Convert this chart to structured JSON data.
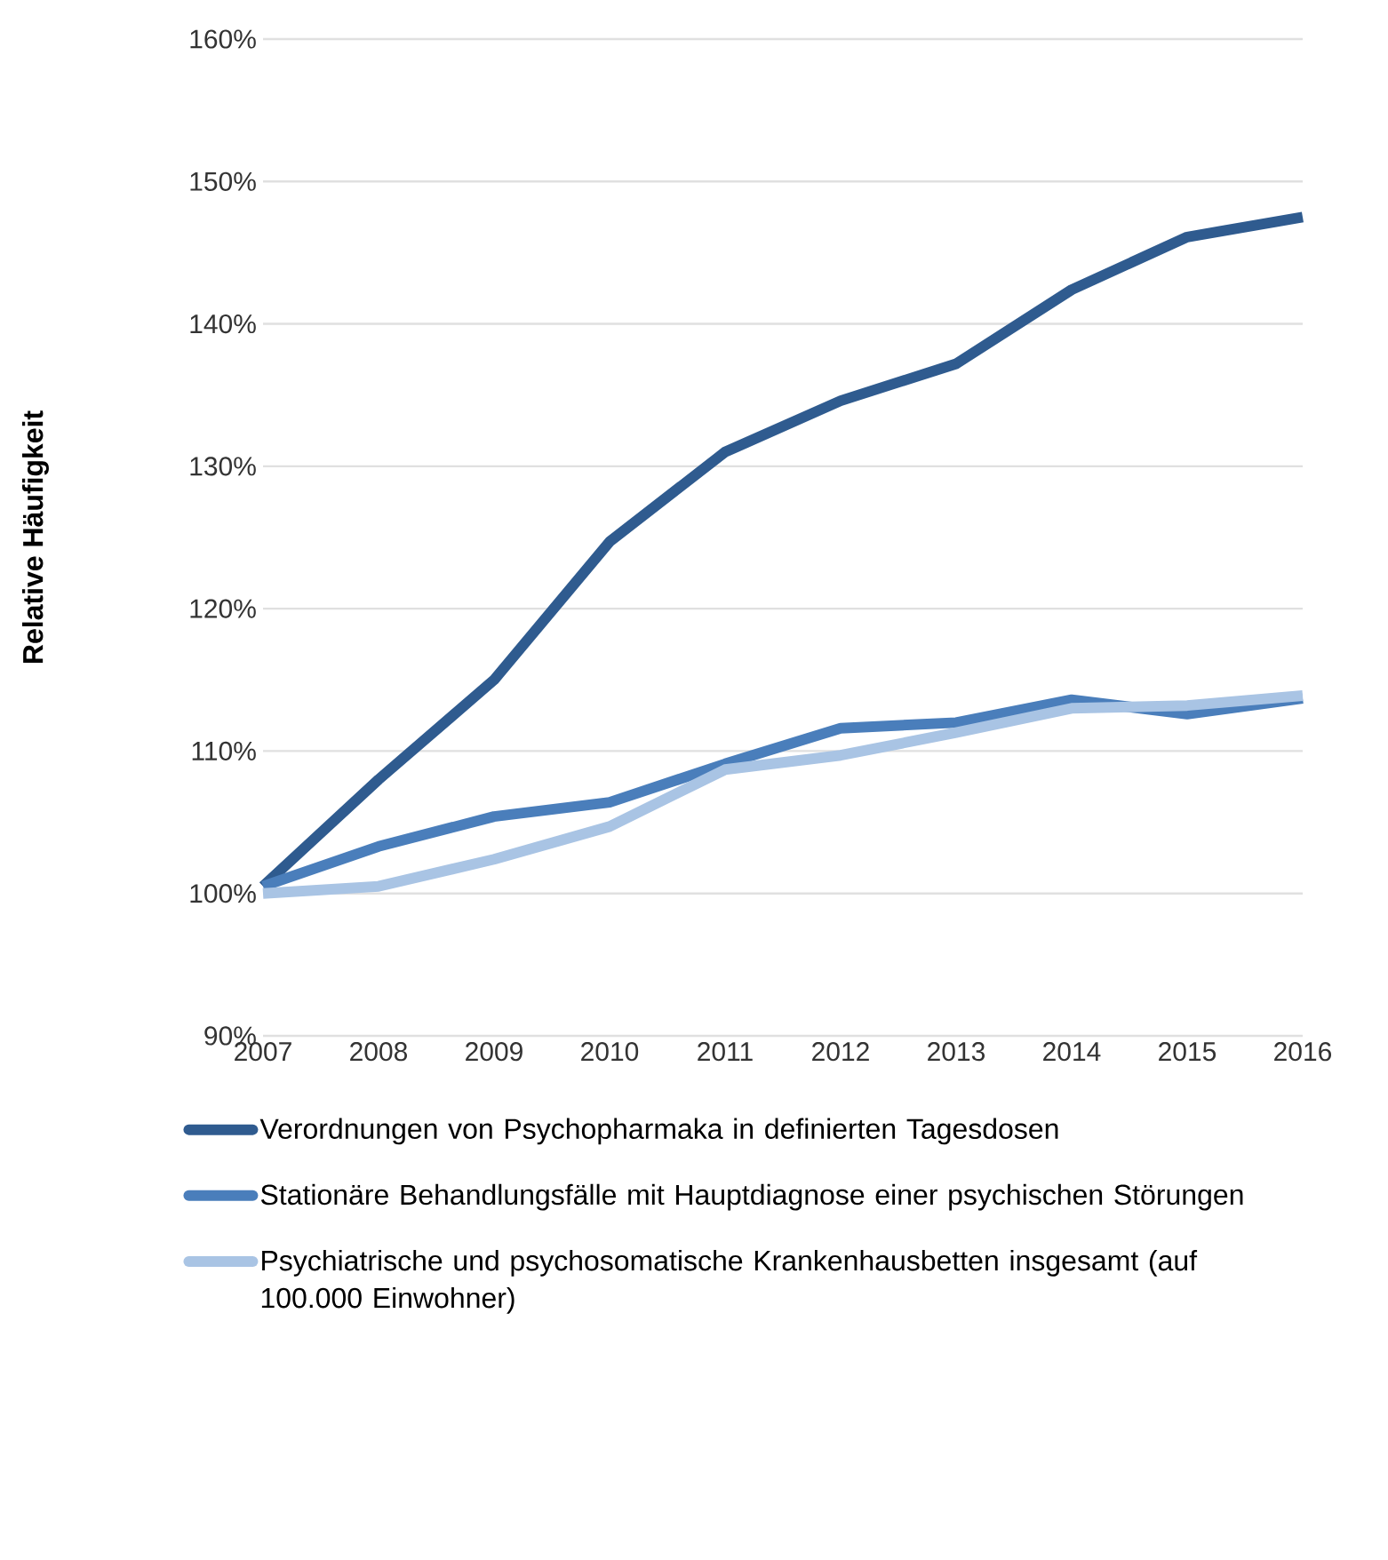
{
  "chart_data": {
    "type": "line",
    "ylabel": "Relative Häufigkeit",
    "categories": [
      "2007",
      "2008",
      "2009",
      "2010",
      "2011",
      "2012",
      "2013",
      "2014",
      "2015",
      "2016"
    ],
    "series": [
      {
        "name": "Verordnungen von Psychopharmaka in definierten Tagesdosen",
        "color": "#2f5b8f",
        "values": [
          100.5,
          108,
          115,
          124.7,
          131,
          134.6,
          137.2,
          142.4,
          146.1,
          147.5
        ]
      },
      {
        "name": "Stationäre Behandlungsfälle mit Hauptdiagnose einer psychischen Störungen",
        "color": "#4a7ebb",
        "values": [
          100.5,
          103.3,
          105.4,
          106.4,
          109.1,
          111.6,
          112,
          113.6,
          112.6,
          113.7
        ]
      },
      {
        "name": "Psychiatrische und psychosomatische Krankenhausbetten insgesamt (auf 100.000 Einwohner)",
        "color": "#a9c4e4",
        "values": [
          100,
          100.5,
          102.4,
          104.7,
          108.7,
          109.7,
          111.3,
          113,
          113.2,
          113.9
        ]
      }
    ],
    "ylim": [
      90,
      160
    ],
    "yticks": [
      {
        "value": 90,
        "label": "90%"
      },
      {
        "value": 100,
        "label": "100%"
      },
      {
        "value": 110,
        "label": "110%"
      },
      {
        "value": 120,
        "label": "120%"
      },
      {
        "value": 130,
        "label": "130%"
      },
      {
        "value": 140,
        "label": "140%"
      },
      {
        "value": 150,
        "label": "150%"
      },
      {
        "value": 160,
        "label": "160%"
      }
    ],
    "grid": "y",
    "legend": "bottom",
    "marker": "none",
    "line_style": "solid"
  }
}
